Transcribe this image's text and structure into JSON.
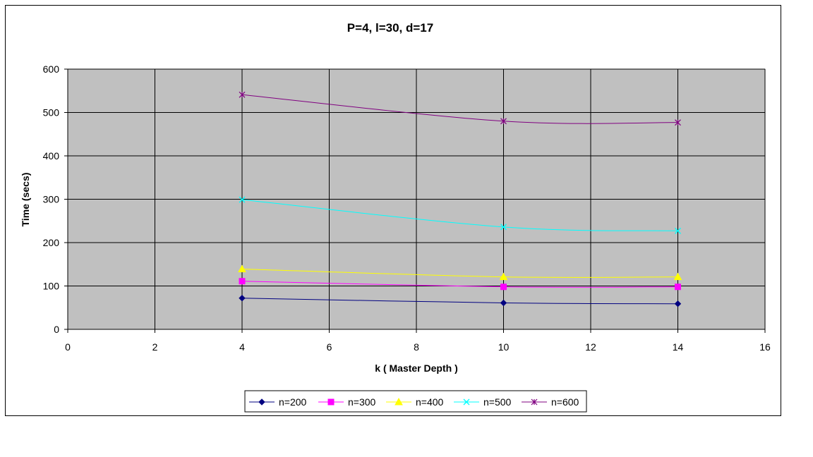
{
  "chart_data": {
    "type": "line",
    "title": "P=4, l=30, d=17",
    "xlabel": "k ( Master Depth )",
    "ylabel": "Time (secs)",
    "xlim": [
      0,
      16
    ],
    "ylim": [
      0,
      600
    ],
    "xticks": [
      0,
      2,
      4,
      6,
      8,
      10,
      12,
      14,
      16
    ],
    "yticks": [
      0,
      100,
      200,
      300,
      400,
      500,
      600
    ],
    "grid": true,
    "plot_background": "#c0c0c0",
    "legend_position": "bottom",
    "x": [
      4,
      10,
      14
    ],
    "series": [
      {
        "name": "n=200",
        "values": [
          72,
          61,
          59
        ],
        "color": "#000080",
        "marker": "diamond"
      },
      {
        "name": "n=300",
        "values": [
          111,
          98,
          98
        ],
        "color": "#ff00ff",
        "marker": "square"
      },
      {
        "name": "n=400",
        "values": [
          139,
          121,
          121
        ],
        "color": "#ffff00",
        "marker": "triangle"
      },
      {
        "name": "n=500",
        "values": [
          299,
          236,
          227
        ],
        "color": "#00ffff",
        "marker": "x"
      },
      {
        "name": "n=600",
        "values": [
          541,
          480,
          477
        ],
        "color": "#800080",
        "marker": "star"
      }
    ]
  }
}
